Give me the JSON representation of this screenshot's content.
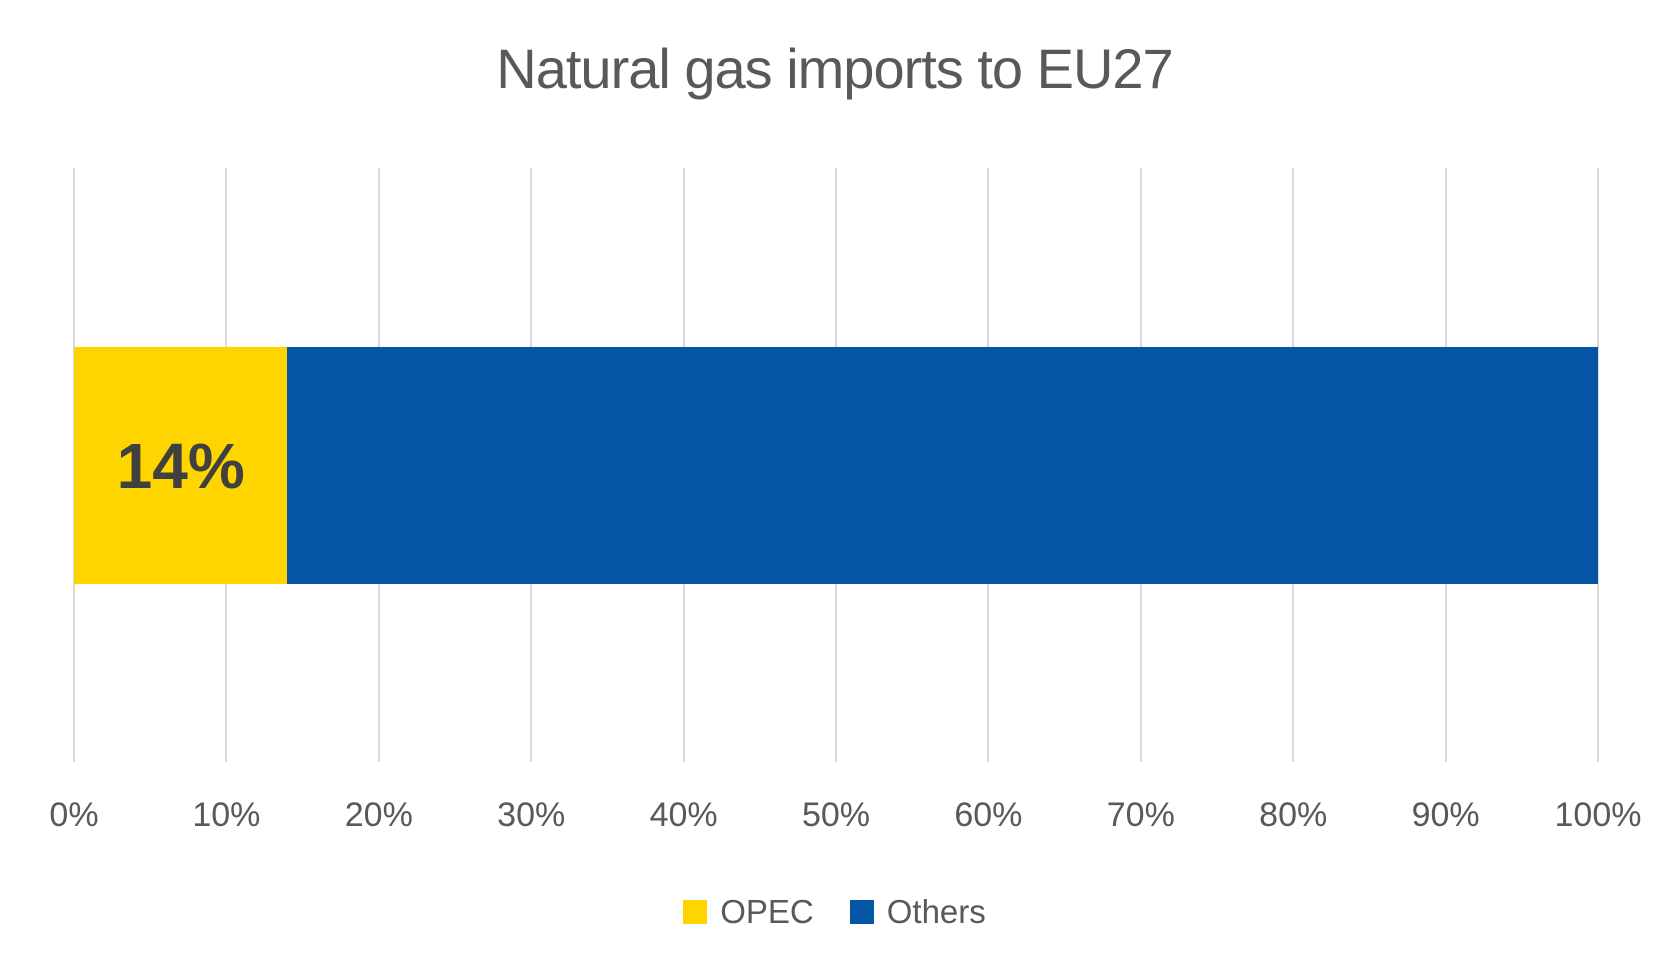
{
  "chart_data": {
    "type": "bar",
    "orientation": "horizontal",
    "stacked": true,
    "title": "Natural gas imports to EU27",
    "categories": [
      ""
    ],
    "series": [
      {
        "name": "OPEC",
        "values": [
          14
        ],
        "color": "#FFD500",
        "data_label": "14%"
      },
      {
        "name": "Others",
        "values": [
          86
        ],
        "color": "#0455A4",
        "data_label": ""
      }
    ],
    "xlim": [
      0,
      100
    ],
    "x_ticks": [
      "0%",
      "10%",
      "20%",
      "30%",
      "40%",
      "50%",
      "60%",
      "70%",
      "80%",
      "90%",
      "100%"
    ],
    "grid": "vertical",
    "grid_color": "#D9D9D9",
    "title_color": "#595959",
    "tick_label_color": "#595959",
    "data_label_color": "#404040",
    "legend_position": "bottom",
    "legend": [
      "OPEC",
      "Others"
    ]
  }
}
